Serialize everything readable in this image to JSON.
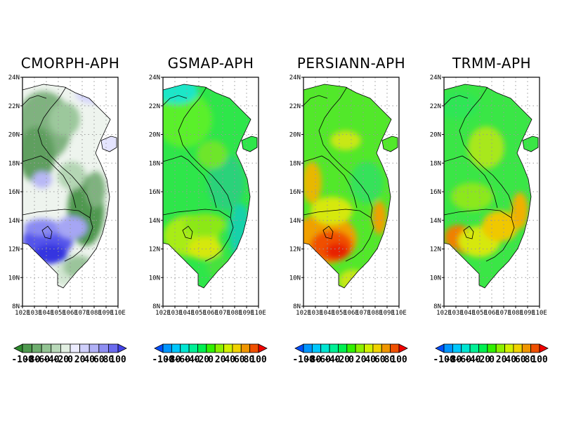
{
  "panels": [
    {
      "title": "CMORPH-APH",
      "scheme": "diff"
    },
    {
      "title": "GSMAP-APH",
      "scheme": "rainbow"
    },
    {
      "title": "PERSIANN-APH",
      "scheme": "rainbow"
    },
    {
      "title": "TRMM-APH",
      "scheme": "rainbow"
    }
  ],
  "lat_ticks": [
    "24N",
    "22N",
    "20N",
    "18N",
    "16N",
    "14N",
    "12N",
    "10N",
    "8N"
  ],
  "lon_ticks": [
    "102E",
    "103E",
    "104E",
    "105E",
    "106E",
    "107E",
    "108E",
    "109E",
    "110E"
  ],
  "colorbar_labels": [
    "-100",
    "-80",
    "-60",
    "-40",
    "-20",
    "0",
    "20",
    "40",
    "60",
    "80",
    "100"
  ],
  "colorbars": [
    {
      "colors": [
        "#2e8b2e",
        "#4f9a4f",
        "#6fae6f",
        "#93c493",
        "#b9d9b9",
        "#e2efe2",
        "#ececff",
        "#cfcffb",
        "#b0b0f6",
        "#8e8ef2",
        "#6a6aee",
        "#4242e8"
      ]
    },
    {
      "colors": [
        "#0050ff",
        "#0096ff",
        "#00c8ff",
        "#00e6d2",
        "#00f096",
        "#00f050",
        "#32f000",
        "#8cf000",
        "#d2f000",
        "#f0d200",
        "#f09600",
        "#f05000",
        "#f00000"
      ]
    },
    {
      "colors": [
        "#0050ff",
        "#0096ff",
        "#00c8ff",
        "#00e6d2",
        "#00f096",
        "#00f050",
        "#32f000",
        "#8cf000",
        "#d2f000",
        "#f0d200",
        "#f09600",
        "#f05000",
        "#f00000"
      ]
    },
    {
      "colors": [
        "#0050ff",
        "#0096ff",
        "#00c8ff",
        "#00e6d2",
        "#00f096",
        "#00f050",
        "#32f000",
        "#8cf000",
        "#d2f000",
        "#f0d200",
        "#f09600",
        "#f05000",
        "#f00000"
      ]
    }
  ]
}
